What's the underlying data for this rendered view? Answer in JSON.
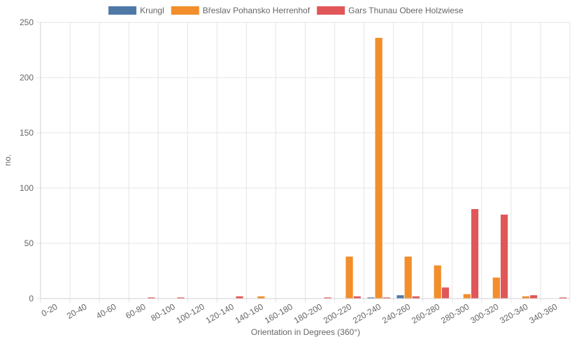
{
  "chart_data": {
    "type": "bar",
    "xlabel": "Orientation in Degrees (360°)",
    "ylabel": "no.",
    "ylim": [
      0,
      250
    ],
    "yticks": [
      "0",
      "50",
      "100",
      "150",
      "200",
      "250"
    ],
    "legend_position": "top-center",
    "grid": true,
    "categories": [
      "0-20",
      "20-40",
      "40-60",
      "60-80",
      "80-100",
      "100-120",
      "120-140",
      "140-160",
      "160-180",
      "180-200",
      "200-220",
      "220-240",
      "240-260",
      "260-280",
      "280-300",
      "300-320",
      "320-340",
      "340-360"
    ],
    "series": [
      {
        "name": "Krungl",
        "color": "#4e79a7",
        "values": [
          0,
          0,
          0,
          0,
          0,
          0,
          0,
          0,
          0,
          0,
          0,
          1,
          3,
          0,
          0,
          0,
          0,
          0
        ]
      },
      {
        "name": "Břeslav Pohansko Herrenhof",
        "color": "#f28e2b",
        "values": [
          0,
          0,
          0,
          0,
          0,
          0,
          0,
          2,
          0,
          0,
          38,
          236,
          38,
          30,
          4,
          19,
          2,
          0
        ]
      },
      {
        "name": "Gars Thunau Obere Holzwiese",
        "color": "#e15759",
        "values": [
          0,
          0,
          0,
          1,
          1,
          0,
          2,
          0,
          0,
          1,
          2,
          1,
          2,
          10,
          81,
          76,
          3,
          1
        ]
      }
    ]
  }
}
